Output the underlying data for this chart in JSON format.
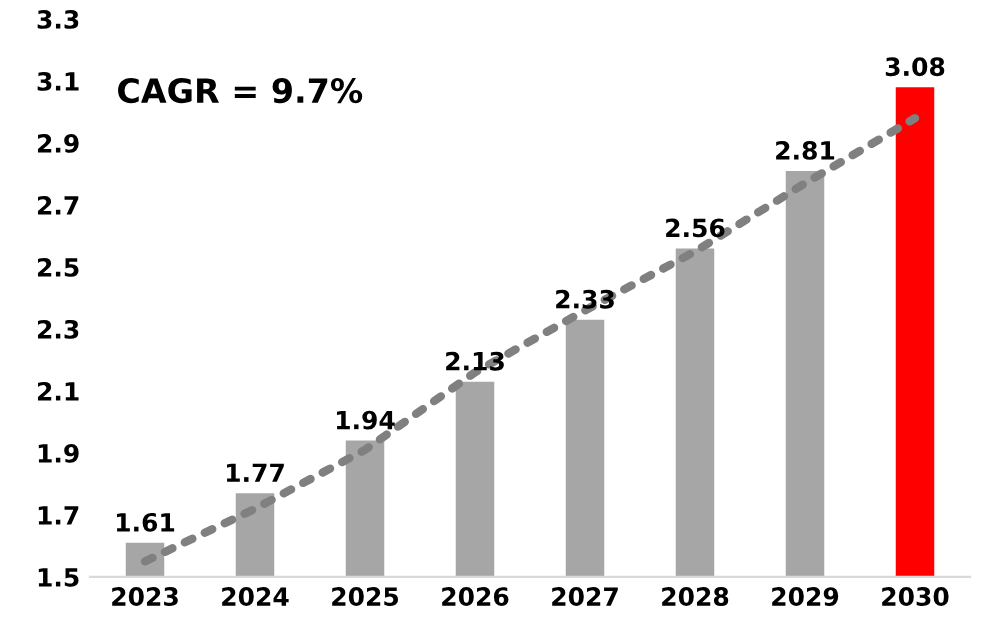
{
  "chart_data": {
    "type": "bar",
    "categories": [
      "2023",
      "2024",
      "2025",
      "2026",
      "2027",
      "2028",
      "2029",
      "2030"
    ],
    "series": [
      {
        "colors": [
          "#a6a6a6",
          "#a6a6a6",
          "#a6a6a6",
          "#a6a6a6",
          "#a6a6a6",
          "#a6a6a6",
          "#a6a6a6",
          "#ff0000"
        ],
        "values": [
          1.61,
          1.77,
          1.94,
          2.13,
          2.33,
          2.56,
          2.81,
          3.08
        ],
        "value_labels": [
          "1.61",
          "1.77",
          "1.94",
          "2.13",
          "2.33",
          "2.56",
          "2.81",
          "3.08"
        ]
      },
      {
        "type": "line",
        "values": [
          1.55,
          1.72,
          1.91,
          2.16,
          2.36,
          2.55,
          2.77,
          2.98
        ],
        "color": "#808080",
        "line_style": "dotted",
        "marker": "none"
      }
    ],
    "ylim": [
      1.5,
      3.3
    ],
    "yticks": [
      1.5,
      1.7,
      1.9,
      2.1,
      2.3,
      2.5,
      2.7,
      2.9,
      3.1,
      3.3
    ],
    "grid": false,
    "legend": false,
    "annotations": [
      "CAGR = 9.7%"
    ]
  }
}
